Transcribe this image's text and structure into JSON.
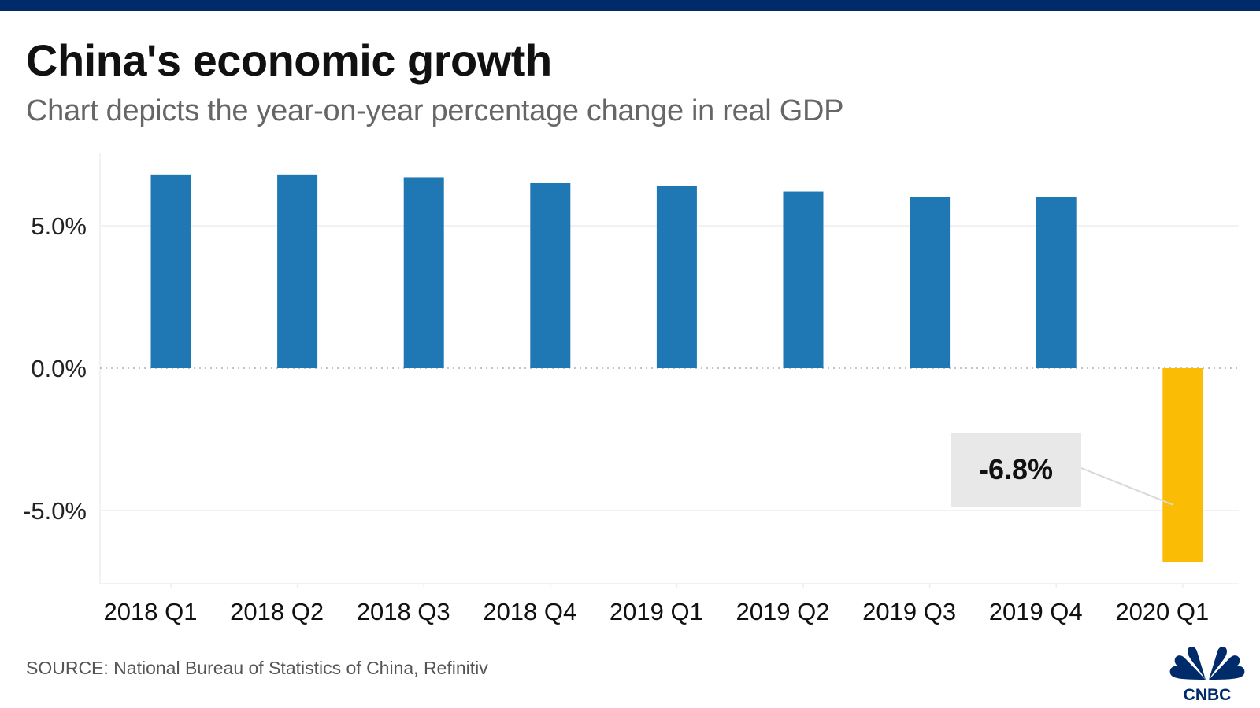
{
  "header": {
    "title": "China's economic growth",
    "subtitle": "Chart depicts the year-on-year percentage change in real GDP"
  },
  "footer": {
    "source": "SOURCE: National Bureau of Statistics of China, Refinitiv",
    "logo_text": "CNBC"
  },
  "colors": {
    "top_bar": "#002b6b",
    "bar_positive": "#1f77b4",
    "bar_highlight": "#fbbc05",
    "annotation_bg": "#e8e8e8",
    "logo": "#002b6b"
  },
  "chart_data": {
    "type": "bar",
    "title": "China's economic growth",
    "subtitle": "Chart depicts the year-on-year percentage change in real GDP",
    "xlabel": "",
    "ylabel": "",
    "categories": [
      "2018 Q1",
      "2018 Q2",
      "2018 Q3",
      "2018 Q4",
      "2019 Q1",
      "2019 Q2",
      "2019 Q3",
      "2019 Q4",
      "2020 Q1"
    ],
    "values": [
      6.8,
      6.8,
      6.7,
      6.5,
      6.4,
      6.2,
      6.0,
      6.0,
      -6.8
    ],
    "unit": "%",
    "highlight_index": 8,
    "ylim": [
      -7.5,
      7.6
    ],
    "yticks": [
      5.0,
      0.0,
      -5.0
    ],
    "ytick_labels": [
      "5.0%",
      "0.0%",
      "-5.0%"
    ],
    "grid": true,
    "zero_line": "dotted",
    "annotations": [
      {
        "category": "2020 Q1",
        "text": "-6.8%"
      }
    ],
    "source": "SOURCE: National Bureau of Statistics of China, Refinitiv"
  }
}
